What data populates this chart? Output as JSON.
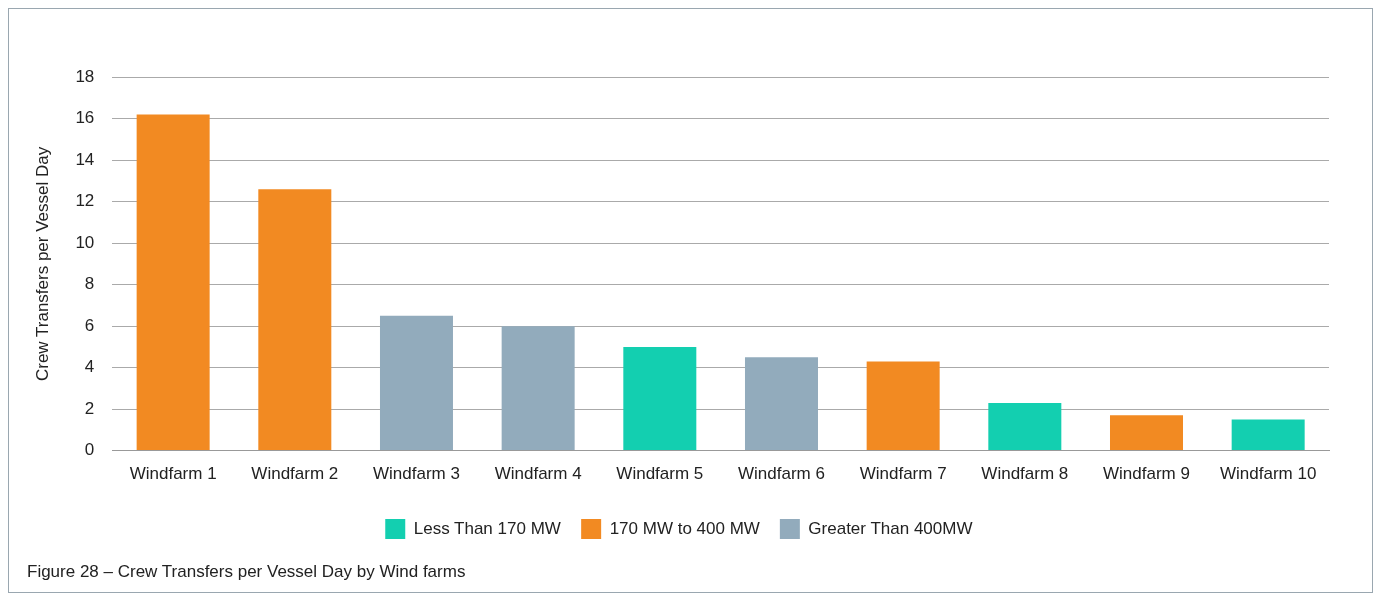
{
  "chart_data": {
    "type": "bar",
    "ylabel": "Crew Transfers per Vessel Day",
    "categories": [
      "Windfarm 1",
      "Windfarm 2",
      "Windfarm 3",
      "Windfarm 4",
      "Windfarm 5",
      "Windfarm 6",
      "Windfarm 7",
      "Windfarm 8",
      "Windfarm 9",
      "Windfarm 10"
    ],
    "series": [
      {
        "name": "Less Than 170 MW",
        "color": "#13cfb0",
        "values": [
          null,
          null,
          null,
          null,
          5.0,
          null,
          null,
          2.3,
          null,
          1.5
        ]
      },
      {
        "name": "170 MW to 400 MW",
        "color": "#f28a22",
        "values": [
          16.2,
          12.6,
          null,
          null,
          null,
          null,
          4.3,
          null,
          1.7,
          null
        ]
      },
      {
        "name": "Greater Than 400MW",
        "color": "#92abbc",
        "values": [
          null,
          null,
          6.5,
          6.0,
          null,
          4.5,
          null,
          null,
          null,
          null
        ]
      }
    ],
    "ylim": [
      0,
      18
    ],
    "yticks": [
      0,
      2,
      4,
      6,
      8,
      10,
      12,
      14,
      16,
      18
    ],
    "grid": "y",
    "legend": "bottom",
    "annotations": [
      "Figure 28 – Crew Transfers per Vessel Day by Wind farms"
    ]
  }
}
